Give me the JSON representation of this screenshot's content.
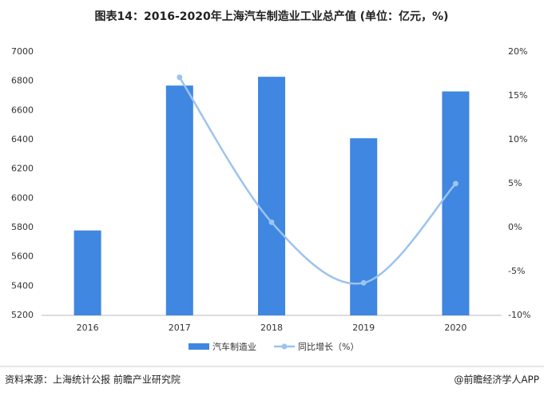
{
  "chart_data": {
    "type": "bar-line",
    "title": "图表14：2016-2020年上海汽车制造业工业总产值 (单位：亿元，%)",
    "categories": [
      "2016",
      "2017",
      "2018",
      "2019",
      "2020"
    ],
    "series": [
      {
        "name": "汽车制造业",
        "type": "bar",
        "color": "#3f87e0",
        "values": [
          5780,
          6770,
          6830,
          6410,
          6730
        ]
      },
      {
        "name": "同比增长（%）",
        "type": "line",
        "axis": "y2",
        "color": "#9cc3ef",
        "values": [
          null,
          17.1,
          0.6,
          -6.3,
          5.0
        ]
      }
    ],
    "ylim": [
      5200,
      7000
    ],
    "yticks": [
      5200,
      5400,
      5600,
      5800,
      6000,
      6200,
      6400,
      6600,
      6800,
      7000
    ],
    "y2lim": [
      -10,
      20
    ],
    "y2ticks": [
      {
        "value": -10,
        "label": "-10%"
      },
      {
        "value": -5,
        "label": "-5%"
      },
      {
        "value": 0,
        "label": "0%"
      },
      {
        "value": 5,
        "label": "5%"
      },
      {
        "value": 10,
        "label": "10%"
      },
      {
        "value": 15,
        "label": "15%"
      },
      {
        "value": 20,
        "label": "20%"
      }
    ],
    "legend": "bottom",
    "source": "资料来源：上海统计公报 前瞻产业研究院",
    "credit": "@前瞻经济学人APP"
  }
}
